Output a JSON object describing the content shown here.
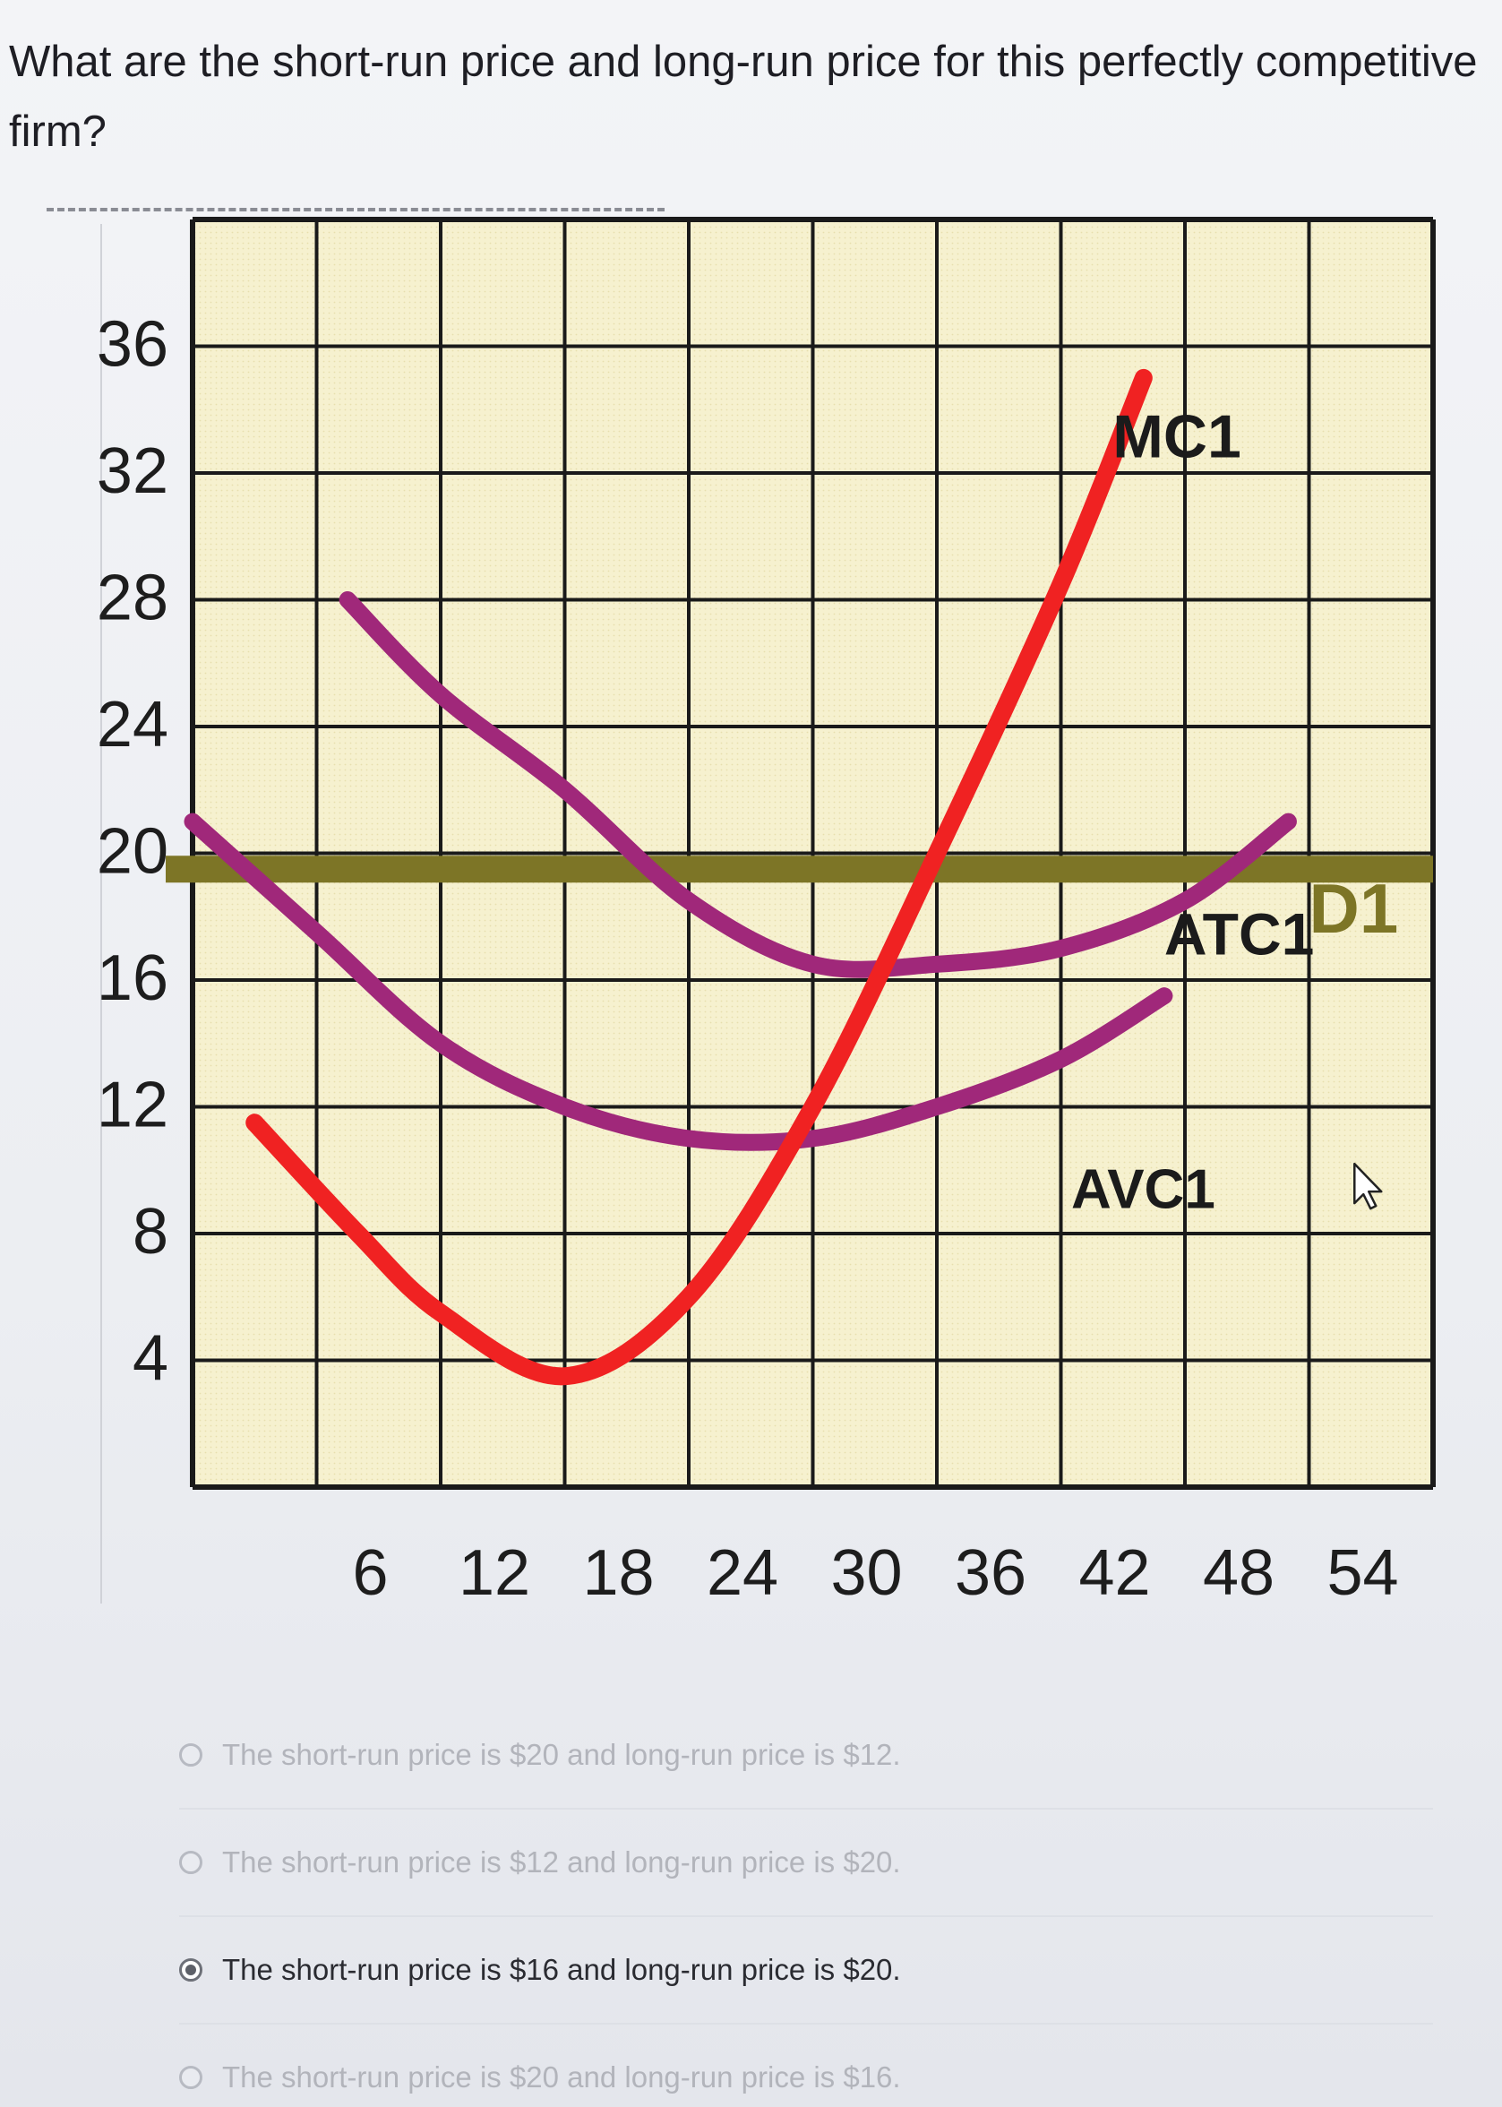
{
  "question": {
    "line1": "What are the short-run price and long-run price for this perfectly competitive",
    "line2": "firm?"
  },
  "chart_data": {
    "type": "line",
    "title": "",
    "xlabel": "",
    "ylabel": "",
    "x_ticks": [
      6,
      12,
      18,
      24,
      30,
      36,
      42,
      48,
      54
    ],
    "y_ticks": [
      36,
      32,
      28,
      24,
      20,
      16,
      12,
      8,
      4
    ],
    "xlim": [
      0,
      60
    ],
    "ylim": [
      0,
      40
    ],
    "grid": true,
    "colors": {
      "MC": "#f02222",
      "ATC": "#a0287a",
      "AVC": "#a0287a",
      "D": "#7d7526",
      "grid": "#1a1a1a",
      "background": "#f6f1cf"
    },
    "series": [
      {
        "name": "MC1",
        "x": [
          3,
          8,
          12,
          18,
          24,
          30,
          36,
          42,
          46
        ],
        "y": [
          11.5,
          8,
          5.5,
          3.5,
          6,
          12,
          20,
          28.5,
          35
        ]
      },
      {
        "name": "ATC1",
        "x": [
          7.5,
          12,
          18,
          24,
          30,
          36,
          42,
          48,
          53
        ],
        "y": [
          28,
          25,
          22,
          18.5,
          16.5,
          16.5,
          17,
          18.5,
          21
        ]
      },
      {
        "name": "AVC1",
        "x": [
          0,
          6,
          12,
          18,
          24,
          30,
          36,
          42,
          47
        ],
        "y": [
          21,
          17.5,
          14,
          12,
          11,
          11,
          12,
          13.5,
          15.5
        ]
      },
      {
        "name": "D1",
        "x": [
          0,
          60
        ],
        "y": [
          19.5,
          19.5
        ]
      }
    ],
    "labels": {
      "MC": "MC1",
      "ATC": "ATC1",
      "AVC": "AVC1",
      "D": "D1"
    }
  },
  "options": [
    {
      "text": "The short-run price is $20 and long-run price is $12.",
      "selected": false
    },
    {
      "text": "The short-run price is $12 and long-run price is $20.",
      "selected": false
    },
    {
      "text": "The short-run price is $16 and long-run price is $20.",
      "selected": true
    },
    {
      "text": "The short-run price is $20 and long-run price is $16.",
      "selected": false
    }
  ]
}
